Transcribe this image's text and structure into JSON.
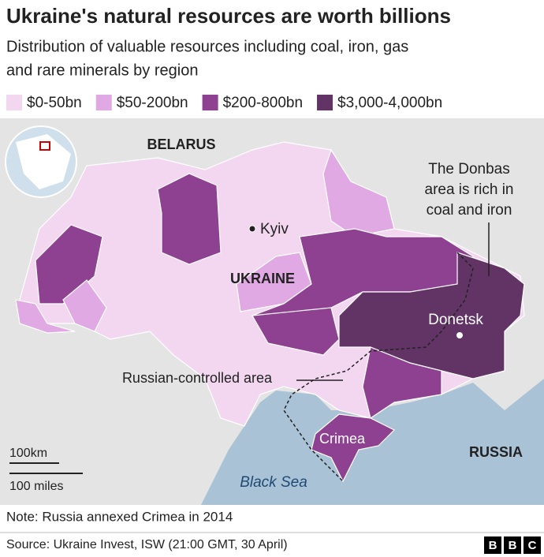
{
  "header": {
    "title": "Ukraine's natural resources are worth billions",
    "subtitle": [
      "Distribution of valuable resources including coal, iron, gas",
      "and rare minerals by region"
    ]
  },
  "legend": [
    {
      "label": "$0-50bn",
      "color": "#f3d7f1"
    },
    {
      "label": "$50-200bn",
      "color": "#e1a9e3"
    },
    {
      "label": "$200-800bn",
      "color": "#8d4190"
    },
    {
      "label": "$3,000-4,000bn",
      "color": "#623466"
    }
  ],
  "map": {
    "belarus": "BELARUS",
    "kyiv": "Kyiv",
    "ukraine": "UKRAINE",
    "donbas": [
      "The Donbas",
      "area is rich in",
      "coal and iron"
    ],
    "donetsk": "Donetsk",
    "russian_controlled": "Russian-controlled area",
    "crimea": "Crimea",
    "russia": "RUSSIA",
    "black_sea": "Black Sea",
    "scale_km": "100km",
    "scale_miles": "100 miles"
  },
  "note": "Note: Russia annexed Crimea in 2014",
  "source": "Source: Ukraine Invest, ISW (21:00 GMT, 30 April)",
  "logo": [
    "B",
    "B",
    "C"
  ]
}
